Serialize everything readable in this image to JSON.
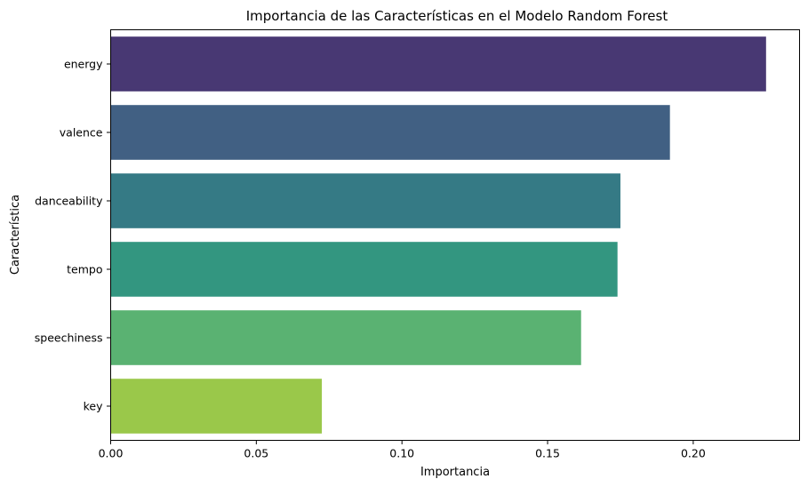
{
  "chart_data": {
    "type": "bar",
    "orientation": "horizontal",
    "title": "Importancia de las Características en el Modelo Random Forest",
    "xlabel": "Importancia",
    "ylabel": "Característica",
    "categories": [
      "energy",
      "valence",
      "danceability",
      "tempo",
      "speechiness",
      "key"
    ],
    "values": [
      0.225,
      0.192,
      0.175,
      0.174,
      0.1615,
      0.0725
    ],
    "colors": [
      "#483873",
      "#416083",
      "#357A85",
      "#339680",
      "#5AB272",
      "#9AC84A"
    ],
    "xlim": [
      0,
      0.2365
    ],
    "xticks": [
      0.0,
      0.05,
      0.1,
      0.15,
      0.2
    ],
    "xtick_labels": [
      "0.00",
      "0.05",
      "0.10",
      "0.15",
      "0.20"
    ],
    "grid": false,
    "legend": false
  }
}
